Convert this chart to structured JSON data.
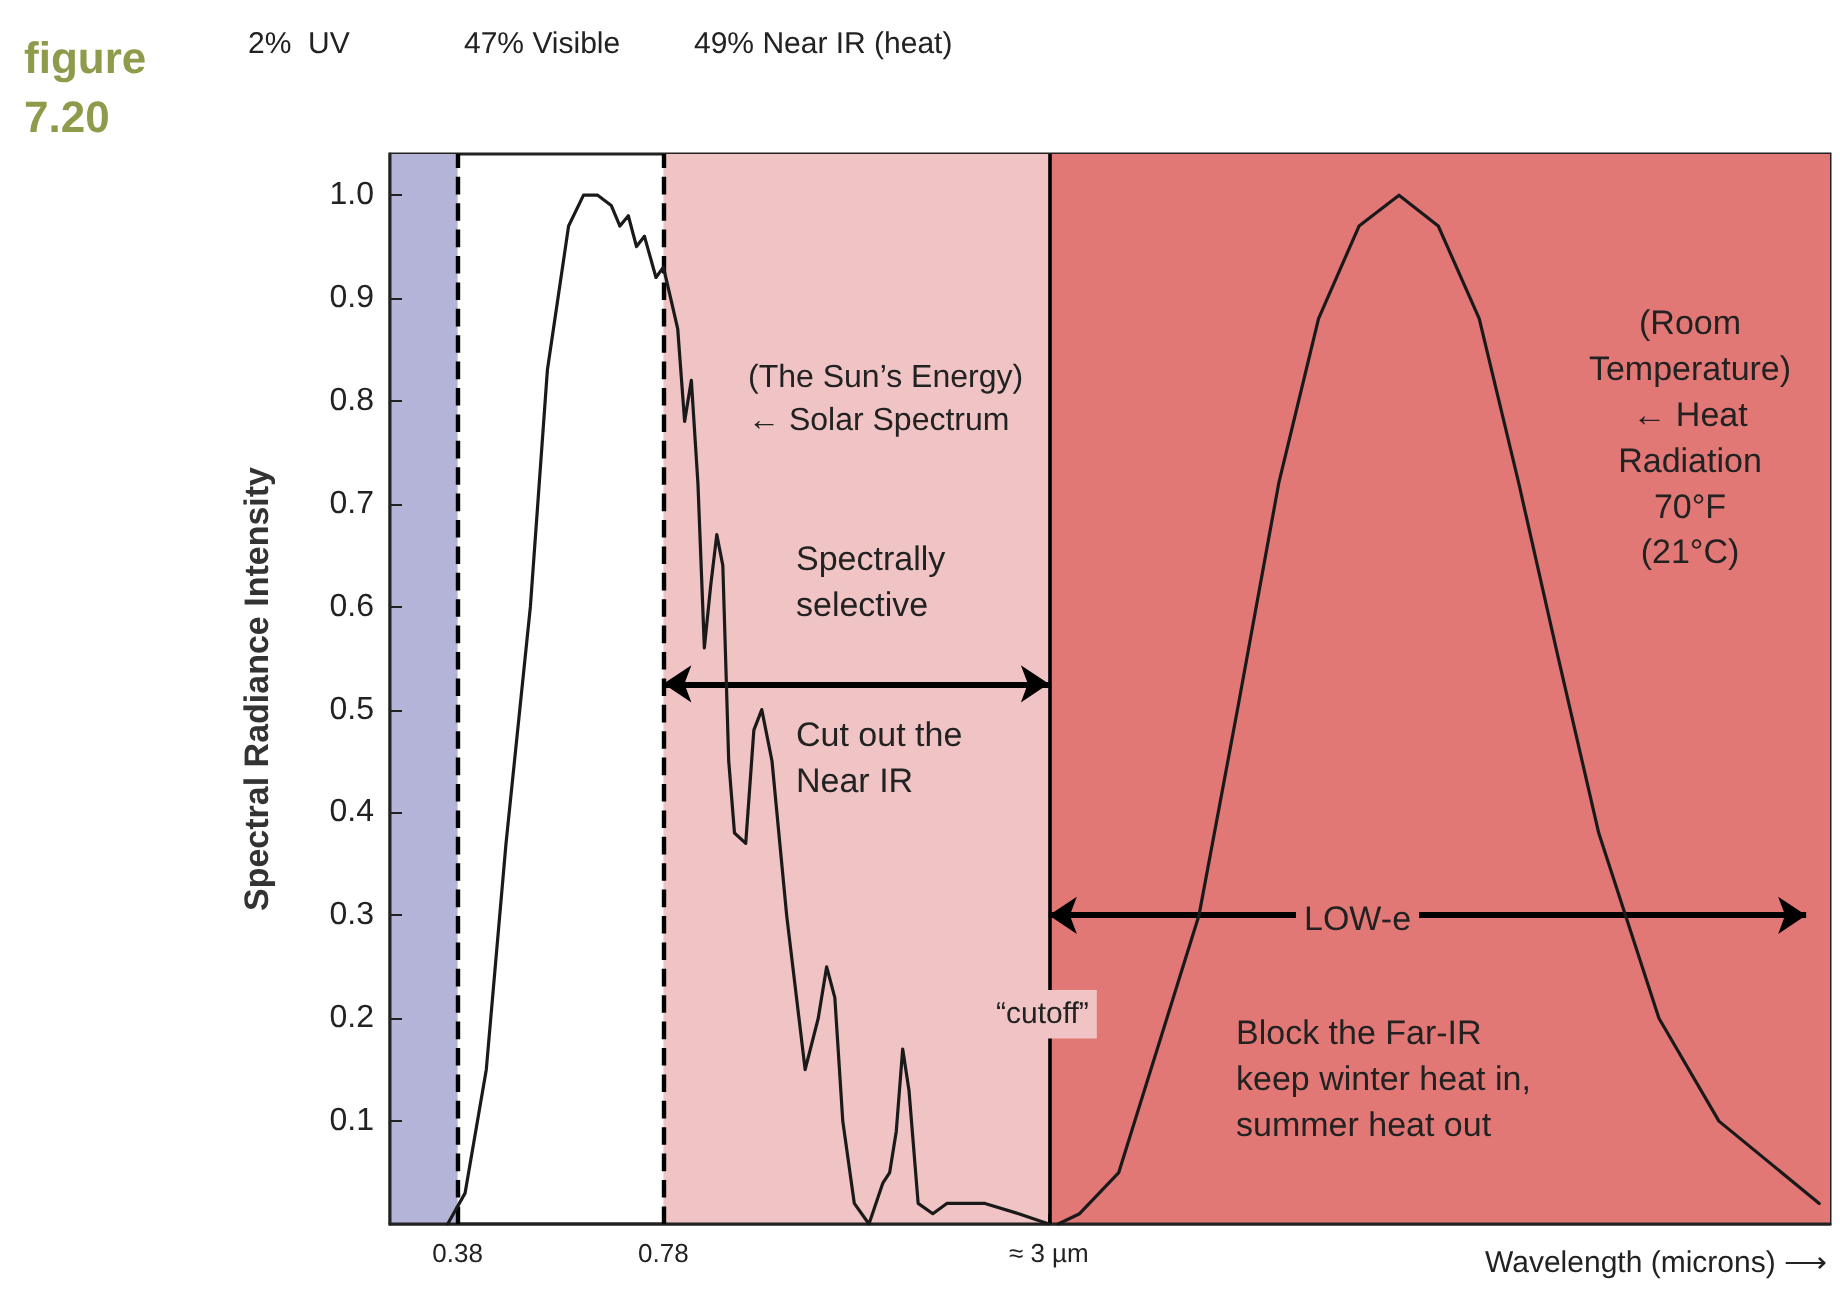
{
  "chart_data": {
    "type": "line",
    "ylabel": "Spectral Radiance Intensity",
    "xlabel": "Wavelength (microns) ⟶",
    "log": "x",
    "xlim": [
      0.3,
      46
    ],
    "xticks": [
      0.38,
      0.78,
      {
        "value": 3,
        "label": "≈ 3 µm"
      }
    ],
    "ylim": [
      0,
      1.04
    ],
    "yticks": [
      0.1,
      0.2,
      0.3,
      0.4,
      0.5,
      0.6,
      0.7,
      0.8,
      0.9,
      {
        "value": 1,
        "label": "1.0"
      }
    ],
    "tick_labels": "xy",
    "grid": false,
    "marker": "none",
    "line_style": "solid",
    "series": [
      {
        "color": "#1a1a1a",
        "x": [
          0.367,
          0.39,
          0.42,
          0.45,
          0.49,
          0.52,
          0.56,
          0.59,
          0.62,
          0.65,
          0.67,
          0.69,
          0.71,
          0.73,
          0.76,
          0.78,
          0.8,
          0.82,
          0.84,
          0.86,
          0.88,
          0.9,
          0.92,
          0.94,
          0.96,
          0.98,
          1.0,
          1.04,
          1.07,
          1.1,
          1.14,
          1.2,
          1.28,
          1.34,
          1.38,
          1.42,
          1.46,
          1.52,
          1.6,
          1.68,
          1.72,
          1.76,
          1.8,
          1.84,
          1.9,
          2.0,
          2.1,
          2.4,
          2.7,
          3.0
        ],
        "values": [
          0,
          0.03,
          0.15,
          0.37,
          0.6,
          0.83,
          0.97,
          1.0,
          1.0,
          0.99,
          0.97,
          0.98,
          0.95,
          0.96,
          0.92,
          0.93,
          0.9,
          0.87,
          0.78,
          0.82,
          0.72,
          0.56,
          0.62,
          0.67,
          0.64,
          0.45,
          0.38,
          0.37,
          0.48,
          0.5,
          0.45,
          0.3,
          0.15,
          0.2,
          0.25,
          0.22,
          0.1,
          0.02,
          0,
          0.04,
          0.05,
          0.09,
          0.17,
          0.13,
          0.02,
          0.01,
          0.02,
          0.02,
          0.01,
          0
        ]
      },
      {
        "color": "#1a1a1a",
        "x": [
          3.1,
          3.34,
          3.83,
          5.07,
          5.8,
          6.7,
          7.7,
          8.87,
          10.2,
          11.7,
          13.5,
          15.5,
          17.8,
          20.5,
          25.3,
          31.2,
          44.3
        ],
        "values": [
          0,
          0.01,
          0.05,
          0.3,
          0.5,
          0.72,
          0.88,
          0.97,
          1.0,
          0.97,
          0.88,
          0.72,
          0.55,
          0.38,
          0.2,
          0.1,
          0.02
        ]
      }
    ],
    "bands": [
      {
        "axis": "x",
        "from": 0.3,
        "to": 0.38,
        "color": "#b4b4d8"
      },
      {
        "axis": "x",
        "from": 0.78,
        "to": 3,
        "color": "#f0c4c4"
      },
      {
        "axis": "x",
        "from": 3,
        "to": 46,
        "color": "#e27876"
      }
    ],
    "ref_lines": [
      {
        "axis": "x",
        "value": 0.38,
        "line_style": "dashed",
        "color": "#000000"
      },
      {
        "axis": "x",
        "value": 0.78,
        "line_style": "dashed",
        "color": "#000000"
      },
      {
        "axis": "x",
        "value": 3,
        "line_style": "solid",
        "color": "#000000"
      }
    ],
    "annotations": [
      "figure\n7.20",
      "2%  UV",
      "47% Visible",
      "49% Near IR (heat)",
      "(The Sun’s Energy)\n← Solar Spectrum",
      "Spectrally\nselective",
      "Cut out the\nNear IR",
      "“cutoff”",
      "LOW-e",
      "Block the Far-IR\nkeep winter heat in,\nsummer heat out",
      "(Room\nTemperature)\n← Heat\nRadiation\n70°F\n(21°C)"
    ]
  }
}
